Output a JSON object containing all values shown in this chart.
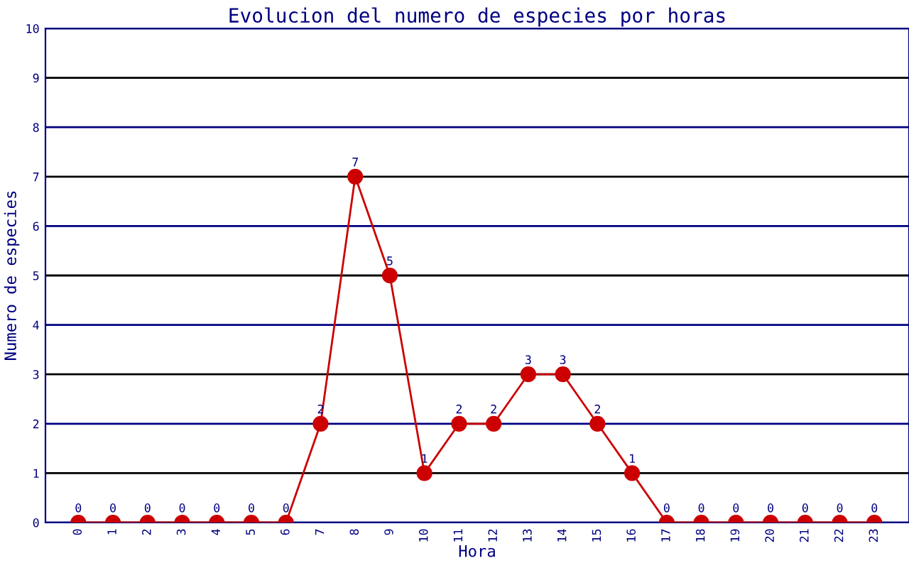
{
  "chart_data": {
    "type": "line",
    "title": "Evolucion del numero de especies por horas",
    "xlabel": "Hora",
    "ylabel": "Numero de especies",
    "categories": [
      "0",
      "1",
      "2",
      "3",
      "4",
      "5",
      "6",
      "7",
      "8",
      "9",
      "10",
      "11",
      "12",
      "13",
      "14",
      "15",
      "16",
      "17",
      "18",
      "19",
      "20",
      "21",
      "22",
      "23"
    ],
    "series": [
      {
        "color": "#cc0000",
        "values": [
          0,
          0,
          0,
          0,
          0,
          0,
          0,
          2,
          7,
          5,
          1,
          2,
          2,
          3,
          3,
          2,
          1,
          0,
          0,
          0,
          0,
          0,
          0,
          0
        ]
      }
    ],
    "ylim": [
      0,
      10
    ],
    "yticks": [
      0,
      1,
      2,
      3,
      4,
      5,
      6,
      7,
      8,
      9,
      10
    ],
    "grid": "y",
    "marker": "circle",
    "line_style": "solid",
    "data_labels": true,
    "legend": false
  }
}
